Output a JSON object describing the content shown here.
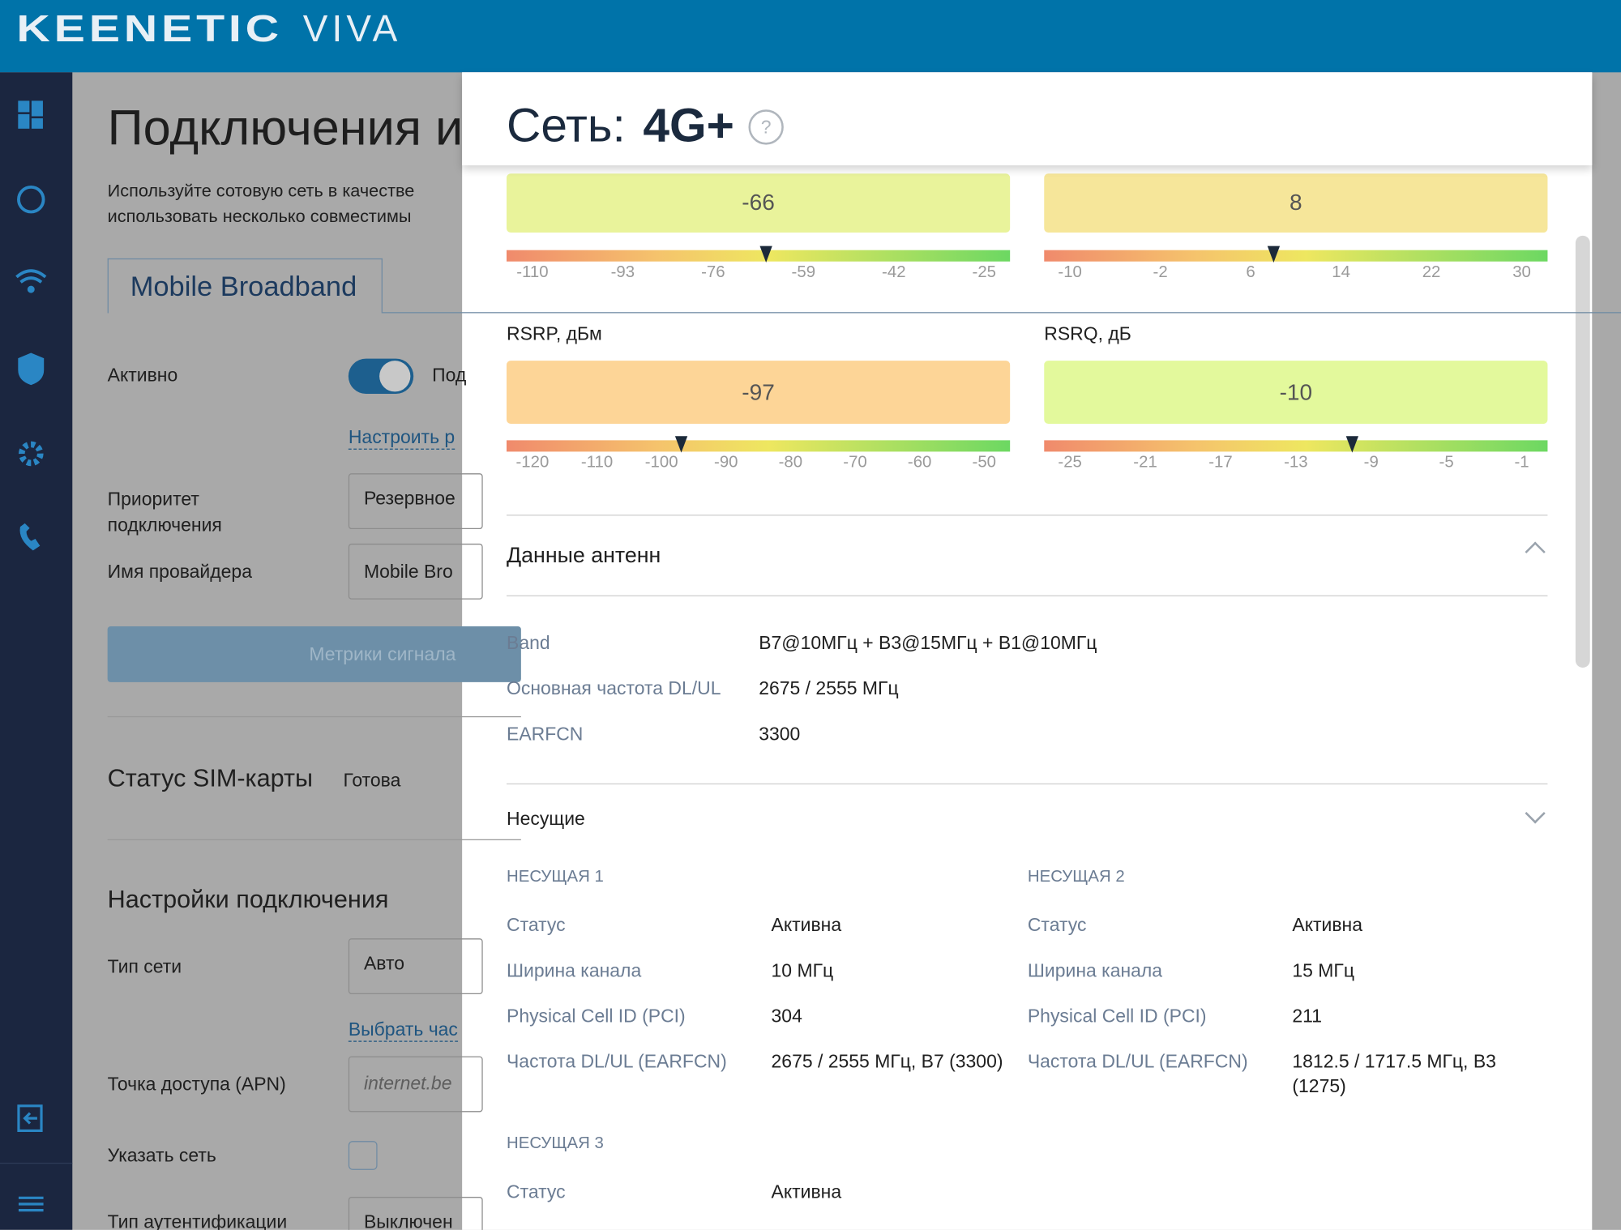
{
  "header": {
    "logo": "KEENETIC",
    "model": "VIVA"
  },
  "background": {
    "title": "Подключения и",
    "description": [
      "Используйте сотовую сеть в качестве",
      "использовать несколько совместимы"
    ],
    "tab": "Mobile Broadband",
    "active_label": "Активно",
    "active_hint": "Под",
    "configure_link": "Настроить р",
    "priority_label": [
      "Приоритет",
      "подключения"
    ],
    "priority_value": "Резервное",
    "provider_label": "Имя провайдера",
    "provider_value": "Mobile Bro",
    "metrics_button": "Метрики сигнала",
    "sim_status_label": "Статус SIM-карты",
    "sim_status_value": "Готова",
    "settings_title": "Настройки подключения",
    "network_type_label": "Тип сети",
    "network_type_value": "Авто",
    "choose_link": "Выбрать час",
    "apn_label": "Точка доступа (APN)",
    "apn_value": "internet.be",
    "specify_network_label": "Указать сеть",
    "auth_label": "Тип аутентификации",
    "auth_value": "Выключен"
  },
  "modal": {
    "title_prefix": "Сеть:",
    "title_strong": "4G+",
    "help": "?",
    "gauges": [
      {
        "value": -66,
        "ticks": [
          -110,
          -93,
          -76,
          -59,
          -42,
          -25
        ],
        "color": "#e9f39b"
      },
      {
        "value": 8,
        "ticks": [
          -10,
          -2,
          6,
          14,
          22,
          30
        ],
        "color": "#f6e69a"
      },
      {
        "label": "RSRP, дБм",
        "value": -97,
        "ticks": [
          -120,
          -110,
          -100,
          -90,
          -80,
          -70,
          -60,
          -50
        ],
        "color": "#fdd597"
      },
      {
        "label": "RSRQ, дБ",
        "value": -10,
        "ticks": [
          -25,
          -21,
          -17,
          -13,
          -9,
          -5,
          -1
        ],
        "color": "#e3f99c"
      }
    ],
    "antenna": {
      "title": "Данные антенн",
      "rows": [
        [
          "Band",
          "B7@10МГц + B3@15МГц + B1@10МГц"
        ],
        [
          "Основная частота DL/UL",
          "2675 / 2555 МГц"
        ],
        [
          "EARFCN",
          "3300"
        ]
      ]
    },
    "carriers": {
      "title": "Несущие",
      "items": [
        {
          "name": "НЕСУЩАЯ 1",
          "rows": [
            [
              "Статус",
              "Активна"
            ],
            [
              "Ширина канала",
              "10 МГц"
            ],
            [
              "Physical Cell ID (PCI)",
              "304"
            ],
            [
              "Частота DL/UL (EARFCN)",
              "2675 / 2555 МГц, B7 (3300)"
            ]
          ]
        },
        {
          "name": "НЕСУЩАЯ 2",
          "rows": [
            [
              "Статус",
              "Активна"
            ],
            [
              "Ширина канала",
              "15 МГц"
            ],
            [
              "Physical Cell ID (PCI)",
              "211"
            ],
            [
              "Частота DL/UL (EARFCN)",
              "1812.5 / 1717.5 МГц, B3 (1275)"
            ]
          ]
        },
        {
          "name": "НЕСУЩАЯ 3",
          "rows": [
            [
              "Статус",
              "Активна"
            ]
          ]
        }
      ]
    }
  }
}
